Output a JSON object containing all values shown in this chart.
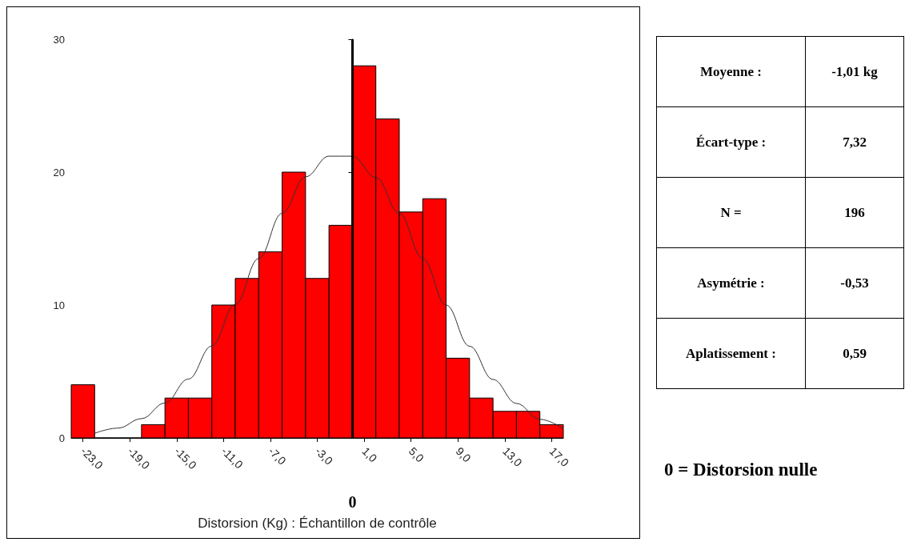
{
  "chart_data": {
    "type": "histogram",
    "xlabel": "Distorsion (Kg) : Échantillon de contrôle",
    "bins": [
      -24,
      -22,
      -20,
      -18,
      -16,
      -14,
      -12,
      -10,
      -8,
      -6,
      -4,
      -2,
      0,
      2,
      4,
      6,
      8,
      10,
      12,
      14,
      16,
      18
    ],
    "values": [
      4,
      0,
      0,
      1,
      3,
      3,
      10,
      12,
      14,
      20,
      12,
      16,
      28,
      24,
      17,
      18,
      6,
      3,
      2,
      2,
      1
    ],
    "color": "#ff0000",
    "series": [
      {
        "type": "line",
        "color": "#333333",
        "x": [
          -22,
          -20,
          -18,
          -16,
          -14,
          -12,
          -10,
          -8,
          -6,
          -4,
          -2,
          0,
          2,
          4,
          6,
          8,
          10,
          12,
          14,
          16,
          18
        ],
        "values": [
          0.35,
          0.74,
          1.45,
          2.63,
          4.43,
          6.92,
          10.05,
          13.5,
          16.9,
          19.65,
          21.2,
          21.2,
          19.6,
          16.9,
          13.5,
          10.0,
          6.9,
          4.4,
          2.6,
          1.4,
          0.7
        ]
      }
    ],
    "xlim": [
      -24,
      18
    ],
    "xticks": [
      {
        "value": -23,
        "label": "-23,0"
      },
      {
        "value": -19,
        "label": "-19,0"
      },
      {
        "value": -15,
        "label": "-15,0"
      },
      {
        "value": -11,
        "label": "-11,0"
      },
      {
        "value": -7,
        "label": "-7,0"
      },
      {
        "value": -3,
        "label": "-3,0"
      },
      {
        "value": 1,
        "label": "1,0"
      },
      {
        "value": 5,
        "label": "5,0"
      },
      {
        "value": 9,
        "label": "9,0"
      },
      {
        "value": 13,
        "label": "13,0"
      },
      {
        "value": 17,
        "label": "17,0"
      }
    ],
    "ylim": [
      0,
      30
    ],
    "yticks": [
      0,
      10,
      20,
      30
    ],
    "grid": false,
    "marker": "none",
    "line_style": "solid",
    "ref_lines": [
      {
        "axis": "x",
        "value": 0,
        "label": "0",
        "color": "#000000"
      }
    ],
    "annotations": [
      "Moyenne :",
      "-1,01 kg",
      "Écart-type :",
      "7,32",
      "N =",
      "196",
      "Asymétrie :",
      "-0,53",
      "Aplatissement :",
      "0,59",
      "0  =  Distorsion nulle"
    ]
  }
}
